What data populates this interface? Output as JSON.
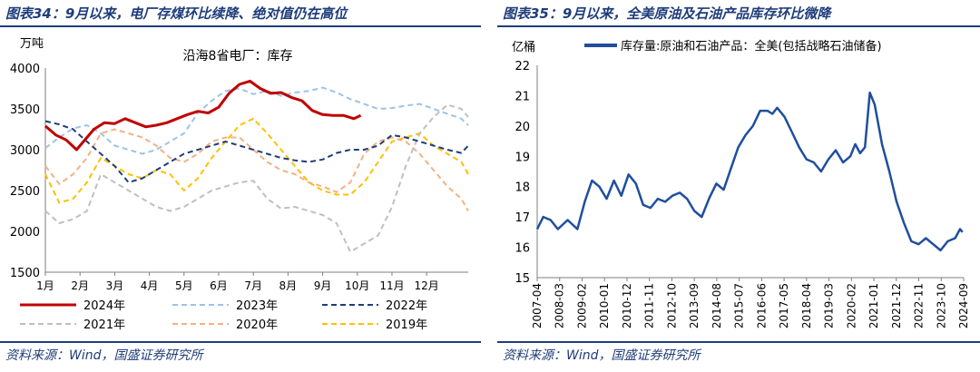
{
  "left": {
    "figure_title": "图表34：9月以来，电厂存煤环比续降、绝对值仍在高位",
    "source": "资料来源：Wind，国盛证券研究所"
  },
  "right": {
    "figure_title": "图表35：9月以来，全美原油及石油产品库存环比微降",
    "source": "资料来源：Wind，国盛证券研究所"
  },
  "chart_data": [
    {
      "type": "line",
      "title": "沿海8省电厂：库存",
      "ylabel": "万吨",
      "ylim": [
        1500,
        4000
      ],
      "yticks": [
        1500,
        2000,
        2500,
        3000,
        3500,
        4000
      ],
      "xlim": [
        1,
        13.2
      ],
      "xticks": [
        1,
        2,
        3,
        4,
        5,
        6,
        7,
        8,
        9,
        10,
        11,
        12
      ],
      "xtick_labels": [
        "1月",
        "2月",
        "3月",
        "4月",
        "5月",
        "6月",
        "7月",
        "8月",
        "9月",
        "10月",
        "11月",
        "12月"
      ],
      "legend": "bottom",
      "series": [
        {
          "name": "2024年",
          "color": "#c00000",
          "style": "solid",
          "width": 3,
          "x": [
            1,
            1.3,
            1.6,
            1.9,
            2.1,
            2.4,
            2.7,
            3.0,
            3.3,
            3.6,
            3.9,
            4.2,
            4.5,
            4.8,
            5.1,
            5.4,
            5.7,
            6.0,
            6.3,
            6.6,
            6.9,
            7.2,
            7.5,
            7.8,
            8.1,
            8.4,
            8.7,
            9.0,
            9.3,
            9.6,
            9.9,
            10.1
          ],
          "y": [
            3290,
            3180,
            3120,
            3000,
            3100,
            3250,
            3330,
            3320,
            3380,
            3330,
            3280,
            3300,
            3330,
            3380,
            3430,
            3470,
            3450,
            3520,
            3690,
            3800,
            3840,
            3750,
            3690,
            3700,
            3640,
            3600,
            3480,
            3430,
            3420,
            3420,
            3380,
            3420
          ]
        },
        {
          "name": "2023年",
          "color": "#9dc3e6",
          "style": "dash",
          "width": 2,
          "x": [
            1,
            1.4,
            1.8,
            2.2,
            2.6,
            3.0,
            3.4,
            3.8,
            4.2,
            4.6,
            5.0,
            5.4,
            5.8,
            6.2,
            6.6,
            7.0,
            7.4,
            7.8,
            8.2,
            8.6,
            9.0,
            9.4,
            9.8,
            10.2,
            10.6,
            11.0,
            11.4,
            11.8,
            12.2,
            12.6,
            13.0,
            13.2
          ],
          "y": [
            3020,
            3150,
            3260,
            3300,
            3200,
            3050,
            3000,
            2950,
            3000,
            3100,
            3200,
            3450,
            3600,
            3720,
            3750,
            3680,
            3720,
            3660,
            3700,
            3720,
            3760,
            3700,
            3620,
            3560,
            3500,
            3510,
            3540,
            3560,
            3500,
            3440,
            3380,
            3300
          ]
        },
        {
          "name": "2022年",
          "color": "#1f3d7a",
          "style": "dash",
          "width": 2,
          "x": [
            1,
            1.4,
            1.8,
            2.2,
            2.6,
            3.0,
            3.4,
            3.8,
            4.2,
            4.6,
            5.0,
            5.4,
            5.8,
            6.2,
            6.6,
            7.0,
            7.4,
            7.8,
            8.2,
            8.6,
            9.0,
            9.4,
            9.8,
            10.2,
            10.6,
            11.0,
            11.4,
            11.8,
            12.2,
            12.6,
            13.0,
            13.2
          ],
          "y": [
            3350,
            3310,
            3250,
            3100,
            2950,
            2800,
            2600,
            2650,
            2750,
            2850,
            2950,
            3000,
            3050,
            3100,
            3050,
            3000,
            2950,
            2900,
            2870,
            2850,
            2880,
            2960,
            3000,
            3000,
            3050,
            3180,
            3150,
            3100,
            3050,
            3000,
            2960,
            3050
          ]
        },
        {
          "name": "2021年",
          "color": "#bfbfbf",
          "style": "dash",
          "width": 2,
          "x": [
            1,
            1.4,
            1.8,
            2.2,
            2.6,
            3.0,
            3.4,
            3.8,
            4.2,
            4.6,
            5.0,
            5.4,
            5.8,
            6.2,
            6.6,
            7.0,
            7.4,
            7.8,
            8.2,
            8.6,
            9.0,
            9.4,
            9.8,
            10.2,
            10.6,
            11.0,
            11.4,
            11.8,
            12.2,
            12.6,
            13.0,
            13.2
          ],
          "y": [
            2250,
            2100,
            2150,
            2250,
            2700,
            2600,
            2500,
            2400,
            2300,
            2250,
            2300,
            2400,
            2500,
            2550,
            2600,
            2620,
            2400,
            2280,
            2300,
            2250,
            2200,
            2100,
            1750,
            1850,
            1950,
            2300,
            2800,
            3200,
            3400,
            3550,
            3500,
            3400
          ]
        },
        {
          "name": "2020年",
          "color": "#f4b183",
          "style": "dash",
          "width": 2,
          "x": [
            1,
            1.4,
            1.8,
            2.2,
            2.6,
            3.0,
            3.4,
            3.8,
            4.2,
            4.6,
            5.0,
            5.4,
            5.8,
            6.2,
            6.6,
            7.0,
            7.4,
            7.8,
            8.2,
            8.6,
            9.0,
            9.4,
            9.8,
            10.2,
            10.6,
            11.0,
            11.4,
            11.8,
            12.2,
            12.6,
            13.0,
            13.2
          ],
          "y": [
            2800,
            2580,
            2700,
            2900,
            3200,
            3250,
            3200,
            3150,
            3050,
            2900,
            2850,
            2950,
            3100,
            3150,
            3150,
            3000,
            2850,
            2750,
            2700,
            2600,
            2550,
            2480,
            2600,
            2950,
            3100,
            3150,
            3100,
            2950,
            2750,
            2550,
            2400,
            2250
          ]
        },
        {
          "name": "2019年",
          "color": "#ffc000",
          "style": "dash",
          "width": 2,
          "x": [
            1,
            1.4,
            1.8,
            2.2,
            2.6,
            3.0,
            3.4,
            3.8,
            4.2,
            4.6,
            5.0,
            5.4,
            5.8,
            6.2,
            6.6,
            7.0,
            7.4,
            7.8,
            8.2,
            8.6,
            9.0,
            9.4,
            9.8,
            10.2,
            10.6,
            11.0,
            11.4,
            11.8,
            12.2,
            12.6,
            13.0,
            13.2
          ],
          "y": [
            2700,
            2350,
            2400,
            2600,
            2900,
            2800,
            2700,
            2650,
            2750,
            2700,
            2500,
            2650,
            2900,
            3100,
            3300,
            3380,
            3200,
            3000,
            2800,
            2600,
            2500,
            2450,
            2450,
            2600,
            2850,
            3100,
            3150,
            3200,
            3050,
            2950,
            2850,
            2700
          ]
        }
      ]
    },
    {
      "type": "line",
      "title": "",
      "ylabel": "亿桶",
      "ylim": [
        15,
        22
      ],
      "yticks": [
        15,
        16,
        17,
        18,
        19,
        20,
        21,
        22
      ],
      "xtick_labels": [
        "2007-04",
        "2008-03",
        "2009-02",
        "2010-01",
        "2010-12",
        "2011-11",
        "2012-10",
        "2013-09",
        "2014-08",
        "2015-07",
        "2016-06",
        "2017-05",
        "2018-04",
        "2019-03",
        "2020-02",
        "2021-01",
        "2021-12",
        "2022-11",
        "2023-10",
        "2024-09"
      ],
      "legend": "top",
      "series": [
        {
          "name": "库存量:原油和石油产品：全美(包括战略石油储备)",
          "color": "#1f4e9e",
          "style": "solid",
          "width": 2.5,
          "x": [
            2007.25,
            2007.5,
            2007.8,
            2008.1,
            2008.5,
            2008.9,
            2009.2,
            2009.5,
            2009.8,
            2010.1,
            2010.4,
            2010.7,
            2011.0,
            2011.3,
            2011.6,
            2011.9,
            2012.2,
            2012.5,
            2012.8,
            2013.1,
            2013.4,
            2013.7,
            2014.0,
            2014.3,
            2014.6,
            2014.9,
            2015.2,
            2015.5,
            2015.8,
            2016.1,
            2016.4,
            2016.7,
            2016.9,
            2017.1,
            2017.4,
            2017.7,
            2018.0,
            2018.3,
            2018.6,
            2018.9,
            2019.2,
            2019.5,
            2019.8,
            2020.1,
            2020.3,
            2020.5,
            2020.7,
            2020.9,
            2021.1,
            2021.4,
            2021.7,
            2022.0,
            2022.3,
            2022.6,
            2022.9,
            2023.2,
            2023.5,
            2023.8,
            2024.1,
            2024.4,
            2024.6,
            2024.7
          ],
          "y": [
            16.6,
            17.0,
            16.9,
            16.6,
            16.9,
            16.6,
            17.5,
            18.2,
            18.0,
            17.6,
            18.2,
            17.7,
            18.4,
            18.1,
            17.4,
            17.3,
            17.6,
            17.5,
            17.7,
            17.8,
            17.6,
            17.2,
            17.0,
            17.6,
            18.1,
            17.9,
            18.6,
            19.3,
            19.7,
            20.0,
            20.5,
            20.5,
            20.4,
            20.6,
            20.3,
            19.8,
            19.3,
            18.9,
            18.8,
            18.5,
            18.9,
            19.2,
            18.8,
            19.0,
            19.4,
            19.1,
            19.3,
            21.1,
            20.7,
            19.4,
            18.5,
            17.5,
            16.8,
            16.2,
            16.1,
            16.3,
            16.1,
            15.9,
            16.2,
            16.3,
            16.6,
            16.5
          ]
        }
      ]
    }
  ]
}
